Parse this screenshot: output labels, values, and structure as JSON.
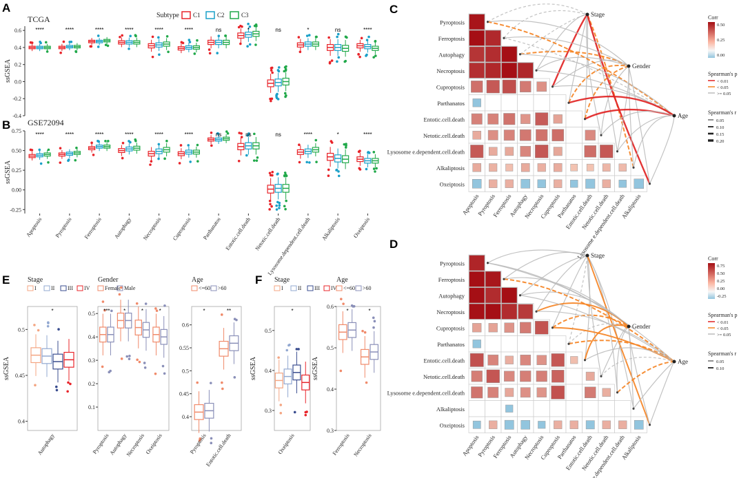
{
  "colors": {
    "C1": "#e8242a",
    "C2": "#1aa0c8",
    "C3": "#21a94a",
    "female": "#f08a6a",
    "male": "#8a8fb8",
    "I": "#f4a582",
    "II": "#92a8d1",
    "III": "#3a4d8f",
    "IV": "#e8242a",
    "orange": "#f58220",
    "red": "#e02020",
    "grey": "#bbbbbb",
    "heatHigh": "#a50f15",
    "heatLow": "#92c5de"
  },
  "labels": {
    "panelA": "A",
    "panelB": "B",
    "panelC": "C",
    "panelD": "D",
    "panelE": "E",
    "panelF": "F",
    "ssgsea": "ssGSEA"
  },
  "chart_data": [
    {
      "id": "A",
      "type": "box",
      "title": "TCGA",
      "ylabel": "ssGSEA",
      "ylim": [
        -0.4,
        0.65
      ],
      "yticks": [
        -0.4,
        -0.2,
        0.0,
        0.2,
        0.4,
        0.6
      ],
      "legend": {
        "title": "Subtype",
        "entries": [
          "C1",
          "C2",
          "C3"
        ]
      },
      "categories": [
        "Apoptosis",
        "Pyroptosis",
        "Ferroptosis",
        "Autophagy",
        "Necroptosis",
        "Cuproptosis",
        "Parthanatos",
        "Entotic.cell.death",
        "Netotic.cell.death",
        "Lysosome.dependent.cell.death",
        "Alkaliptosis",
        "Oxeiptosis"
      ],
      "significance": [
        "****",
        "****",
        "****",
        "****",
        "****",
        "****",
        "ns",
        "*",
        "ns",
        "*",
        "ns",
        "****"
      ],
      "medians": {
        "C1": [
          0.4,
          0.4,
          0.47,
          0.46,
          0.42,
          0.39,
          0.46,
          0.54,
          -0.02,
          0.43,
          0.4,
          0.42
        ],
        "C2": [
          0.4,
          0.41,
          0.47,
          0.46,
          0.43,
          0.4,
          0.46,
          0.55,
          -0.01,
          0.44,
          0.4,
          0.41
        ],
        "C3": [
          0.4,
          0.41,
          0.48,
          0.46,
          0.44,
          0.4,
          0.46,
          0.56,
          0.0,
          0.44,
          0.39,
          0.39
        ]
      },
      "spread": [
        0.03,
        0.03,
        0.03,
        0.04,
        0.05,
        0.04,
        0.05,
        0.06,
        0.08,
        0.05,
        0.07,
        0.05
      ]
    },
    {
      "id": "B",
      "type": "box",
      "title": "GSE72094",
      "ylabel": "ssGSEA",
      "ylim": [
        -0.3,
        0.75
      ],
      "yticks": [
        -0.25,
        0.0,
        0.25,
        0.5,
        0.75
      ],
      "categories": [
        "Apoptosis",
        "Pyroptosis",
        "Ferroptosis",
        "Autophagy",
        "Necroptosis",
        "Cuproptosis",
        "Parthanatos",
        "Entotic.cell.death",
        "Netotic.cell.death",
        "Lysosome.dependent.cell.death",
        "Alkaliptosis",
        "Oxeiptosis"
      ],
      "significance": [
        "****",
        "****",
        "****",
        "****",
        "****",
        "****",
        "ns",
        "ns",
        "ns",
        "****",
        "*",
        "****"
      ],
      "medians": {
        "C1": [
          0.43,
          0.45,
          0.53,
          0.5,
          0.46,
          0.46,
          0.64,
          0.55,
          0.01,
          0.48,
          0.42,
          0.39
        ],
        "C2": [
          0.44,
          0.46,
          0.55,
          0.52,
          0.49,
          0.48,
          0.64,
          0.56,
          0.02,
          0.49,
          0.4,
          0.37
        ],
        "C3": [
          0.45,
          0.47,
          0.55,
          0.53,
          0.51,
          0.48,
          0.65,
          0.56,
          0.02,
          0.51,
          0.39,
          0.37
        ]
      },
      "spread": [
        0.04,
        0.04,
        0.04,
        0.05,
        0.06,
        0.05,
        0.04,
        0.08,
        0.1,
        0.06,
        0.09,
        0.06
      ]
    },
    {
      "id": "C",
      "type": "heatmap-network",
      "rows": [
        "Pyroptosis",
        "Ferroptosis",
        "Autophagy",
        "Necroptosis",
        "Cuproptosis",
        "Parthanatos",
        "Entotic.cell.death",
        "Netotic.cell.death",
        "Lysosome e.dependent.cell.death",
        "Alkaliptosis",
        "Oxeiptosis"
      ],
      "cols": [
        "Apoptosis",
        "Pyroptosis",
        "Ferroptosis",
        "Autophagy",
        "Necroptosis",
        "Cuproptosis",
        "Parthanatos",
        "Entotic.cell.death",
        "Netotic.cell.death",
        "Lysosome e.dependent.cell.death",
        "Alkaliptosis"
      ],
      "nodes": [
        "Stage",
        "Gender",
        "Age"
      ],
      "corrLegend": {
        "title": "Corr",
        "ticks": [
          "0.50",
          "0.25",
          "0.00"
        ]
      },
      "pLegend": {
        "title": "Spearman's p",
        "entries": [
          "< 0.01",
          "< 0.05",
          ">= 0.05"
        ]
      },
      "rLegend": {
        "title": "Spearman's r",
        "entries": [
          "0.05",
          "0.10",
          "0.15",
          "0.20"
        ]
      }
    },
    {
      "id": "D",
      "type": "heatmap-network",
      "rows": [
        "Pyroptosis",
        "Ferroptosis",
        "Autophagy",
        "Necroptosis",
        "Cuproptosis",
        "Parthanatos",
        "Entotic.cell.death",
        "Netotic.cell.death",
        "Lysosome e.dependent.cell.death",
        "Alkaliptosis",
        "Oxeiptosis"
      ],
      "cols": [
        "Apoptosis",
        "Pyroptosis",
        "Ferroptosis",
        "Autophagy",
        "Necroptosis",
        "Cuproptosis",
        "Parthanatos",
        "Entotic.cell.death",
        "Netotic.cell.death",
        "Lysosome e.dependent.cell.death",
        "Alkaliptosis"
      ],
      "nodes": [
        "Stage",
        "Gender",
        "Age"
      ],
      "corrLegend": {
        "title": "Corr",
        "ticks": [
          "0.75",
          "0.50",
          "0.25",
          "0.00",
          "-0.25"
        ]
      },
      "pLegend": {
        "title": "Spearman's p",
        "entries": [
          "< 0.01",
          "< 0.05",
          ">= 0.05"
        ]
      },
      "rLegend": {
        "title": "Spearman's r",
        "entries": [
          "0.05",
          "0.10"
        ]
      }
    },
    {
      "id": "E1",
      "type": "box",
      "legend": {
        "title": "Stage",
        "entries": [
          "I",
          "II",
          "III",
          "IV"
        ]
      },
      "ylabel": "ssGSEA",
      "ylim": [
        0.39,
        0.525
      ],
      "yticks": [
        0.4,
        0.45,
        0.5
      ],
      "categories": [
        "Autophagy"
      ],
      "significance": [
        "*"
      ],
      "groups": [
        "I",
        "II",
        "III",
        "IV"
      ],
      "medians": [
        [
          0.472,
          0.471,
          0.465,
          0.467
        ]
      ]
    },
    {
      "id": "E2",
      "type": "box",
      "legend": {
        "title": "Gender",
        "entries": [
          "Female",
          "Male"
        ]
      },
      "ylim": [
        0.0,
        0.53
      ],
      "yticks": [
        0.1,
        0.2,
        0.3,
        0.4,
        0.5
      ],
      "categories": [
        "Pyroptosis",
        "Autophagy",
        "Necroptosis",
        "Oxeiptosis"
      ],
      "significance": [
        "***",
        "*",
        "*",
        "*"
      ],
      "groups": [
        "Female",
        "Male"
      ],
      "medians": [
        [
          0.41,
          0.41
        ],
        [
          0.47,
          0.47
        ],
        [
          0.44,
          0.43
        ],
        [
          0.41,
          0.4
        ]
      ]
    },
    {
      "id": "E3",
      "type": "box",
      "legend": {
        "title": "Age",
        "entries": [
          "<=60",
          ">60"
        ]
      },
      "ylim": [
        0.37,
        0.64
      ],
      "yticks": [
        0.4,
        0.45,
        0.5,
        0.55,
        0.6
      ],
      "categories": [
        "Pyroptosis",
        "Entotic.cell.death"
      ],
      "significance": [
        "*",
        "**"
      ],
      "groups": [
        "<=60",
        ">60"
      ],
      "medians": [
        [
          0.41,
          0.413
        ],
        [
          0.548,
          0.56
        ]
      ]
    },
    {
      "id": "F1",
      "type": "box",
      "legend": {
        "title": "Stage",
        "entries": [
          "I",
          "II",
          "III",
          "IV"
        ]
      },
      "ylabel": "ssGSEA",
      "ylim": [
        0.25,
        0.56
      ],
      "yticks": [
        0.3,
        0.4,
        0.5
      ],
      "categories": [
        "Oxeiptosis"
      ],
      "significance": [
        "*"
      ],
      "groups": [
        "I",
        "II",
        "III",
        "IV"
      ],
      "medians": [
        [
          0.375,
          0.385,
          0.395,
          0.37
        ]
      ]
    },
    {
      "id": "F2",
      "type": "box",
      "legend": {
        "title": "Age",
        "entries": [
          "<=60",
          ">60"
        ]
      },
      "ylabel": "ssGSEA",
      "ylim": [
        0.3,
        0.6
      ],
      "yticks": [
        0.3,
        0.4,
        0.5,
        0.6
      ],
      "categories": [
        "Ferroptosis",
        "Necroptosis"
      ],
      "significance": [
        "*",
        "*"
      ],
      "groups": [
        "<=60",
        ">60"
      ],
      "medians": [
        [
          0.538,
          0.543
        ],
        [
          0.478,
          0.49
        ]
      ]
    }
  ]
}
